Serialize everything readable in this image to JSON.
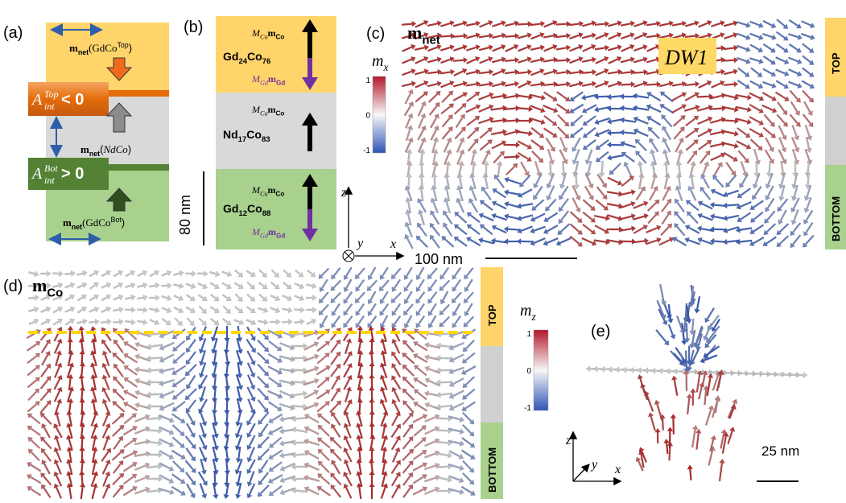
{
  "panel_a": {
    "label": "(a)",
    "top_text": [
      "m",
      "net",
      "(GdCo",
      "Top",
      ")"
    ],
    "top_interface": [
      "A",
      "int",
      "Top",
      " < 0"
    ],
    "middle_text": [
      "m",
      "net",
      "(",
      "NdCo",
      ")"
    ],
    "bottom_interface": [
      "A",
      "int",
      "Bot",
      " > 0"
    ],
    "bottom_text": [
      "m",
      "net",
      "(GdCo",
      "Bot",
      ")"
    ]
  },
  "panel_b": {
    "label": "(b)",
    "layers": [
      {
        "co_moment": [
          "M",
          "Co",
          "m",
          "Co"
        ],
        "composition": [
          "Gd",
          "24",
          "Co",
          "76"
        ],
        "gd_moment": [
          "M",
          "Gd",
          "m",
          "Gd"
        ]
      },
      {
        "co_moment": [
          "M",
          "Co",
          "m",
          "Co"
        ],
        "composition": [
          "Nd",
          "17",
          "Co",
          "83"
        ]
      },
      {
        "co_moment": [
          "M",
          "Co",
          "m",
          "Co"
        ],
        "composition": [
          "Gd",
          "12",
          "Co",
          "88"
        ],
        "gd_moment": [
          "M",
          "Gd",
          "m",
          "Gd"
        ]
      }
    ],
    "scale_bar": "80 nm",
    "axes": {
      "z": "z",
      "y": "y",
      "x": "x"
    }
  },
  "panel_c": {
    "label": "(c)",
    "title": [
      "m",
      "net"
    ],
    "domain_wall": "DW1",
    "colorbar": {
      "label": [
        "m",
        "x"
      ],
      "ticks": [
        1,
        0,
        -1
      ]
    },
    "layers": [
      "TOP",
      "BOTTOM"
    ],
    "scale_bar": "100 nm"
  },
  "panel_d": {
    "label": "(d)",
    "title": [
      "m",
      "Co"
    ],
    "colorbar": {
      "label": [
        "m",
        "z"
      ],
      "ticks": [
        1,
        0,
        -1
      ]
    },
    "layers": [
      "TOP",
      "BOTTOM"
    ]
  },
  "panel_e": {
    "label": "(e)",
    "axes": {
      "z": "z",
      "y": "y",
      "x": "x"
    },
    "scale_bar": "25 nm"
  }
}
